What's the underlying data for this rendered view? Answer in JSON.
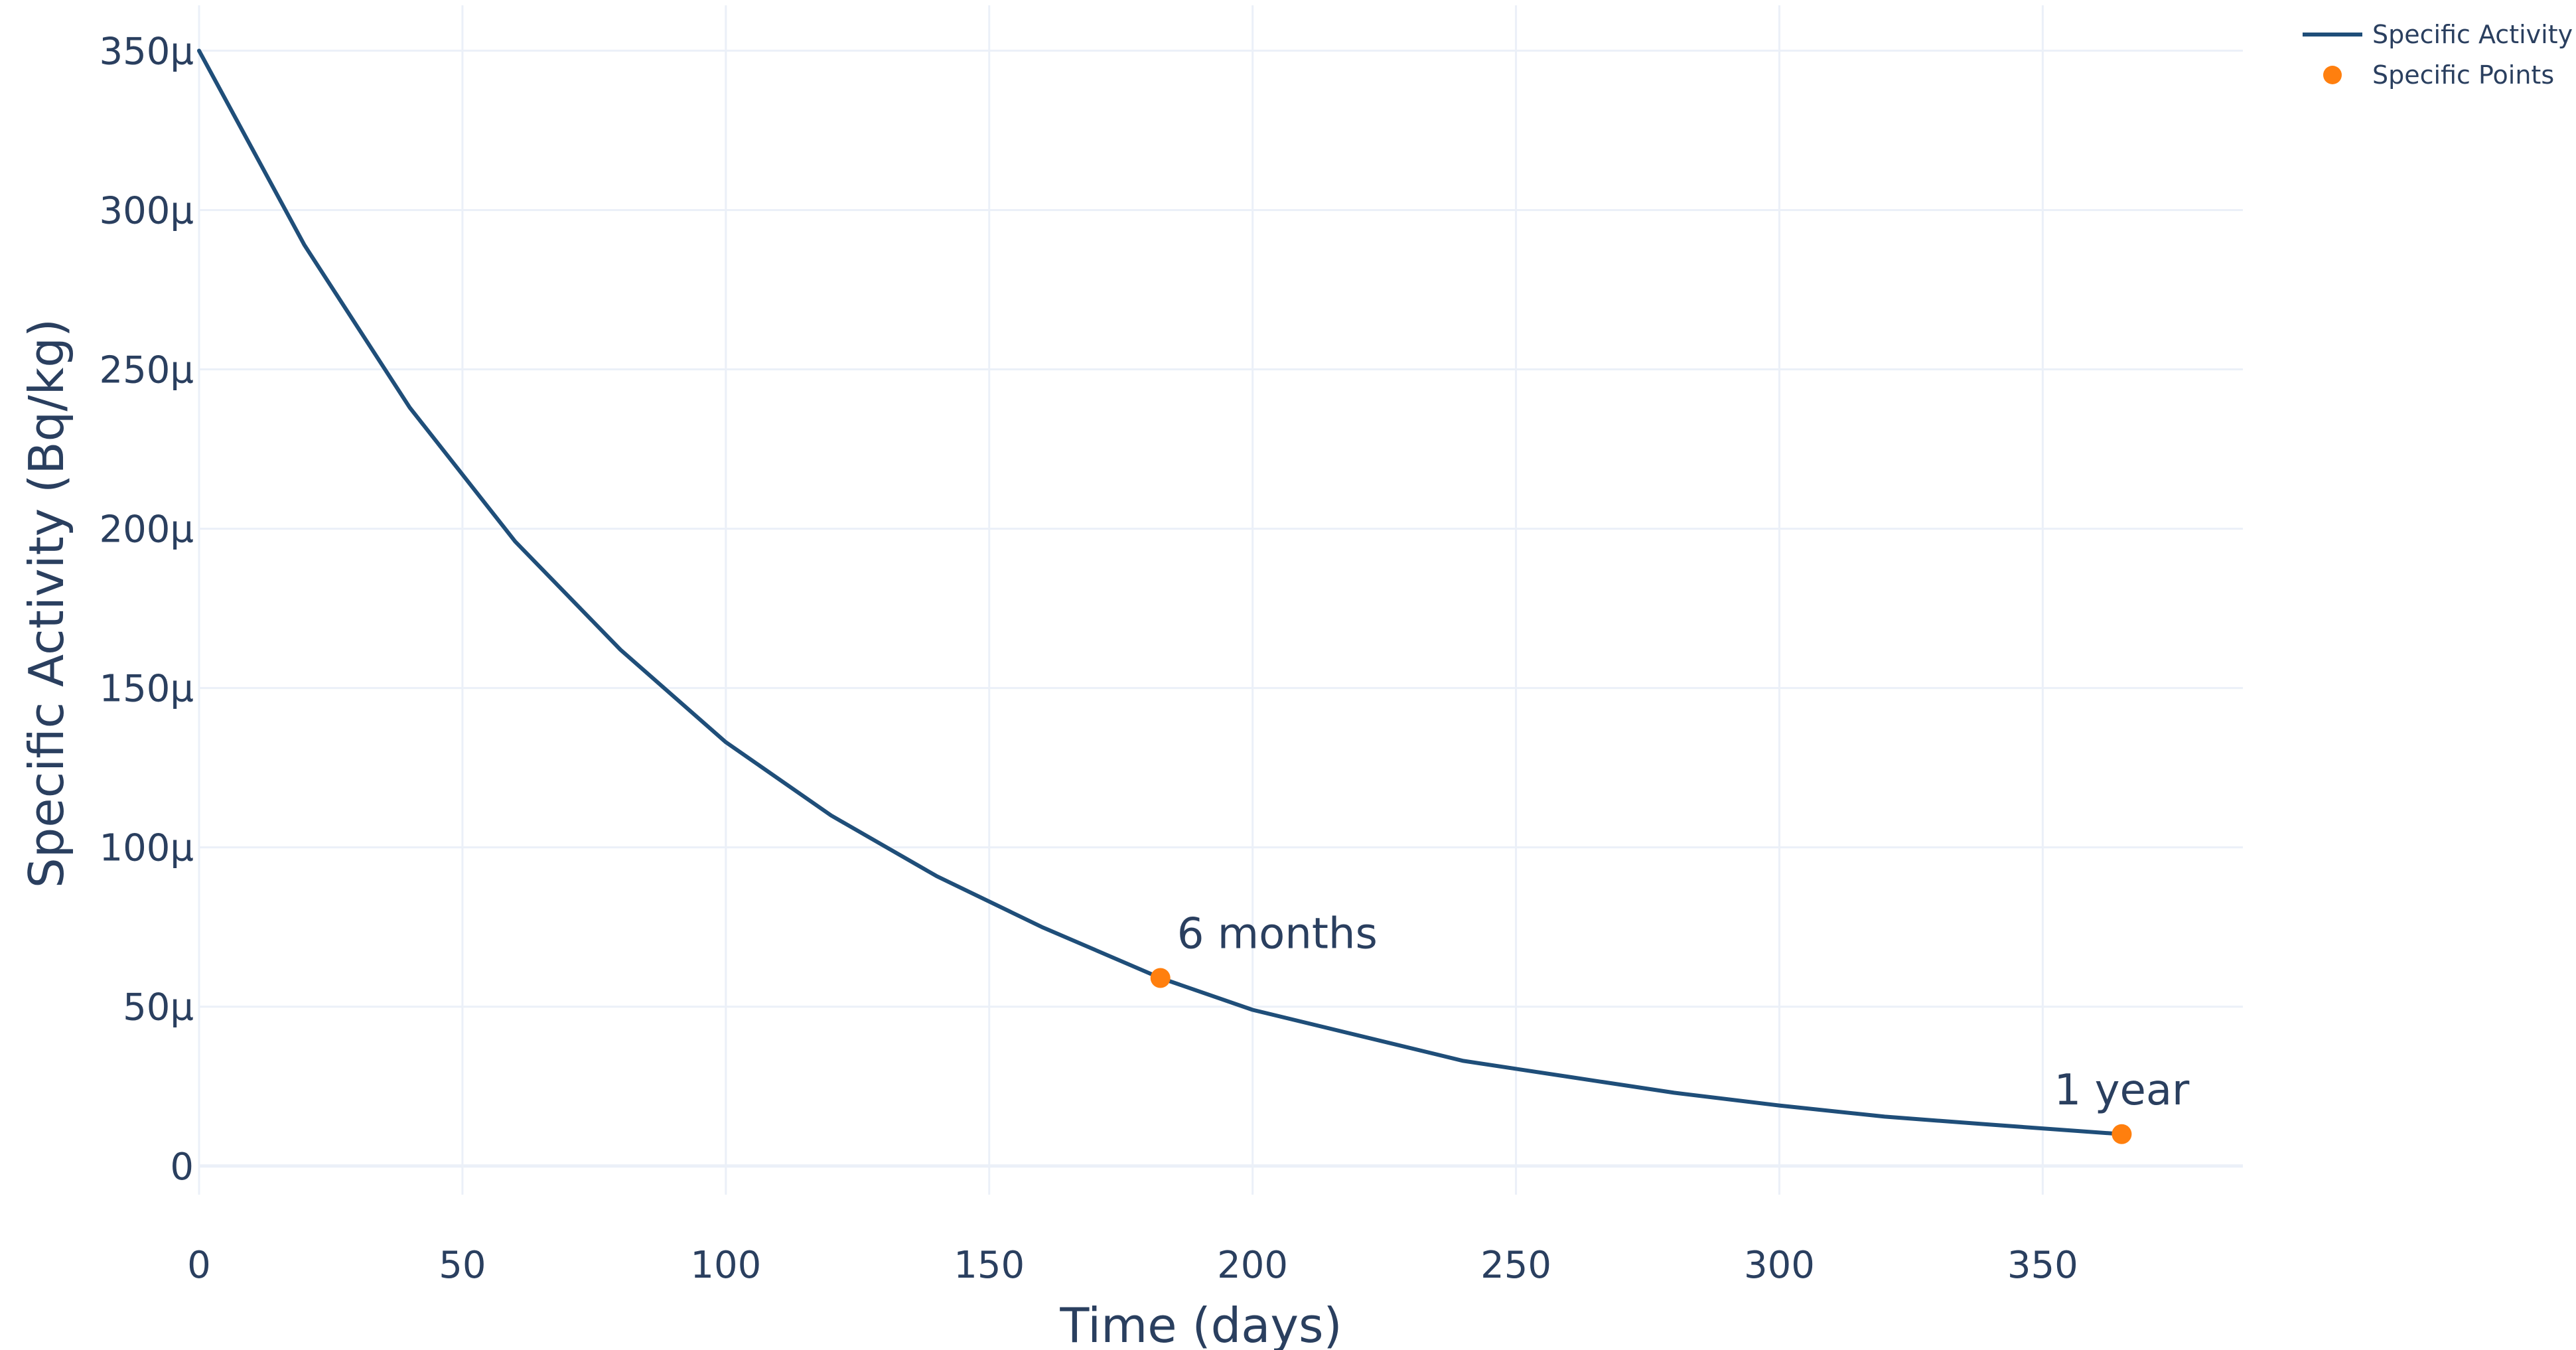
{
  "chart_data": {
    "type": "line",
    "xlabel": "Time (days)",
    "ylabel": "Specific Activity (Bq/kg)",
    "xlim": [
      0,
      388
    ],
    "ylim": [
      -9,
      358
    ],
    "x_ticks": [
      0,
      50,
      100,
      150,
      200,
      250,
      300,
      350
    ],
    "x_tick_labels": [
      "0",
      "50",
      "100",
      "150",
      "200",
      "250",
      "300",
      "350"
    ],
    "y_ticks": [
      0,
      50,
      100,
      150,
      200,
      250,
      300,
      350
    ],
    "y_tick_labels": [
      "0",
      "50μ",
      "100μ",
      "150μ",
      "200μ",
      "250μ",
      "300μ",
      "350μ"
    ],
    "y_unit_note": "values in μBq/kg",
    "grid": true,
    "legend_position": "top-right",
    "series": [
      {
        "name": "Specific Activity",
        "kind": "line",
        "color": "#1f4e79",
        "x": [
          0,
          20,
          40,
          60,
          80,
          100,
          120,
          140,
          160,
          182.5,
          200,
          220,
          240,
          260,
          280,
          300,
          320,
          340,
          365
        ],
        "y": [
          350,
          289,
          238,
          196,
          162,
          133,
          110,
          91,
          75,
          59,
          49,
          41,
          33,
          28,
          23,
          19,
          15.5,
          13,
          10
        ]
      },
      {
        "name": "Specific Points",
        "kind": "scatter",
        "color": "#ff7f0e",
        "x": [
          182.5,
          365
        ],
        "y": [
          59,
          10
        ],
        "labels": [
          "6 months",
          "1 year"
        ]
      }
    ]
  }
}
